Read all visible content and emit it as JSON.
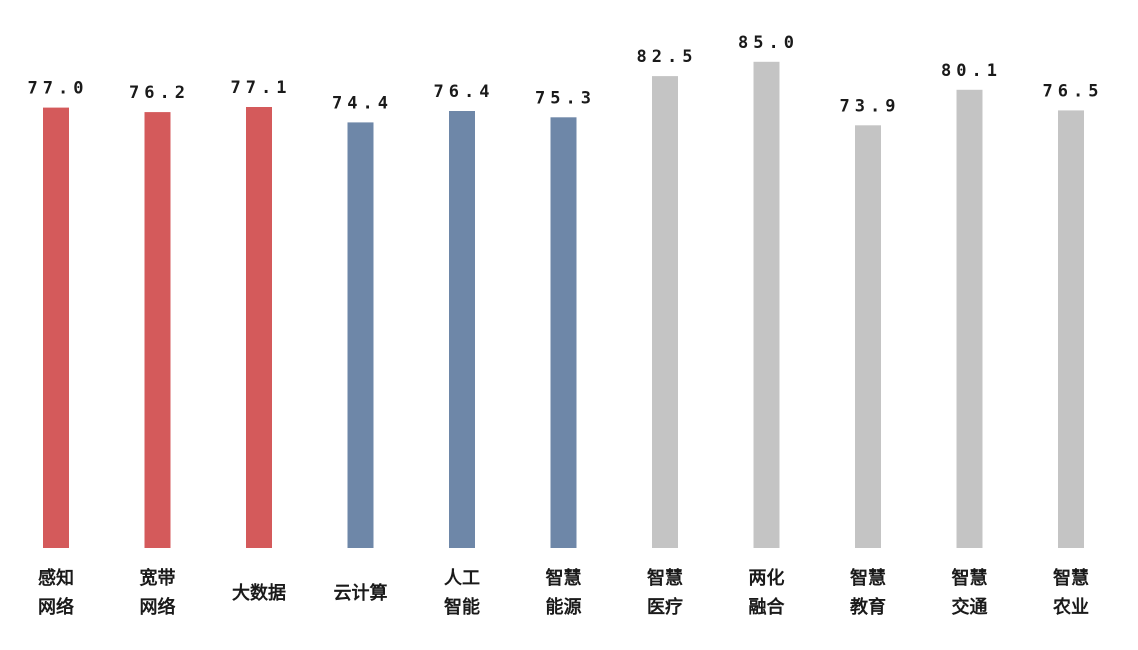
{
  "chart_data": {
    "type": "bar",
    "categories": [
      [
        "感知",
        "网络"
      ],
      [
        "宽带",
        "网络"
      ],
      [
        "大数据"
      ],
      [
        "云计算"
      ],
      [
        "人工",
        "智能"
      ],
      [
        "智慧",
        "能源"
      ],
      [
        "智慧",
        "医疗"
      ],
      [
        "两化",
        "融合"
      ],
      [
        "智慧",
        "教育"
      ],
      [
        "智慧",
        "交通"
      ],
      [
        "智慧",
        "农业"
      ]
    ],
    "values": [
      77.0,
      76.2,
      77.1,
      74.4,
      76.4,
      75.3,
      82.5,
      85.0,
      73.9,
      80.1,
      76.5
    ],
    "value_labels": [
      "77.0",
      "76.2",
      "77.1",
      "74.4",
      "76.4",
      "75.3",
      "82.5",
      "85.0",
      "73.9",
      "80.1",
      "76.5"
    ],
    "bar_colors": [
      "#d45a5b",
      "#d45a5b",
      "#d45a5b",
      "#6e87a8",
      "#6e87a8",
      "#6e87a8",
      "#c4c4c4",
      "#c4c4c4",
      "#c4c4c4",
      "#c4c4c4",
      "#c4c4c4"
    ],
    "title": "",
    "xlabel": "",
    "ylabel": "",
    "ylim": [
      0,
      85.0
    ],
    "grid": false,
    "legend": "none"
  }
}
